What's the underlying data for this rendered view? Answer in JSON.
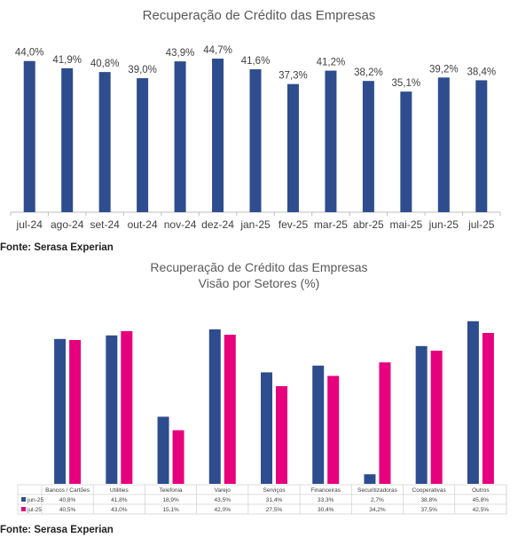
{
  "chart1": {
    "type": "bar",
    "title": "Recuperação de Crédito das Empresas",
    "categories": [
      "jul-24",
      "ago-24",
      "set-24",
      "out-24",
      "nov-24",
      "dez-24",
      "jan-25",
      "fev-25",
      "mar-25",
      "abr-25",
      "mai-25",
      "jun-25",
      "jul-25"
    ],
    "values": [
      44.0,
      41.9,
      40.8,
      39.0,
      43.9,
      44.7,
      41.6,
      37.3,
      41.2,
      38.2,
      35.1,
      39.2,
      38.4
    ],
    "labels": [
      "44,0%",
      "41,9%",
      "40,8%",
      "39,0%",
      "43,9%",
      "44,7%",
      "41,6%",
      "37,3%",
      "41,2%",
      "38,2%",
      "35,1%",
      "39,2%",
      "38,4%"
    ],
    "ylim": [
      0,
      46
    ],
    "color": "#2e4d8f",
    "source": "Fonte: Serasa Experian"
  },
  "chart2": {
    "type": "bar",
    "title": "Recuperação de Crédito das Empresas",
    "subtitle": "Visão por Setores (%)",
    "categories": [
      "Bancos / Cartões",
      "Utilities",
      "Telefonia",
      "Varejo",
      "Serviços",
      "Financeiras",
      "Securitizadoras",
      "Cooperativas",
      "Outros"
    ],
    "series": [
      {
        "name": "jun-25",
        "color": "#2e4d8f",
        "values": [
          40.8,
          41.8,
          18.9,
          43.5,
          31.4,
          33.3,
          2.7,
          38.8,
          45.8
        ],
        "labels": [
          "40,8%",
          "41,8%",
          "18,9%",
          "43,5%",
          "31,4%",
          "33,3%",
          "2,7%",
          "38,8%",
          "45,8%"
        ]
      },
      {
        "name": "jul-25",
        "color": "#e6007e",
        "values": [
          40.5,
          43.0,
          15.1,
          42.0,
          27.5,
          30.4,
          34.2,
          37.5,
          42.5
        ],
        "labels": [
          "40,5%",
          "43,0%",
          "15,1%",
          "42,0%",
          "27,5%",
          "30,4%",
          "34,2%",
          "37,5%",
          "42,5%"
        ]
      }
    ],
    "ylim": [
      0,
      46
    ],
    "source": "Fonte: Serasa Experian"
  }
}
